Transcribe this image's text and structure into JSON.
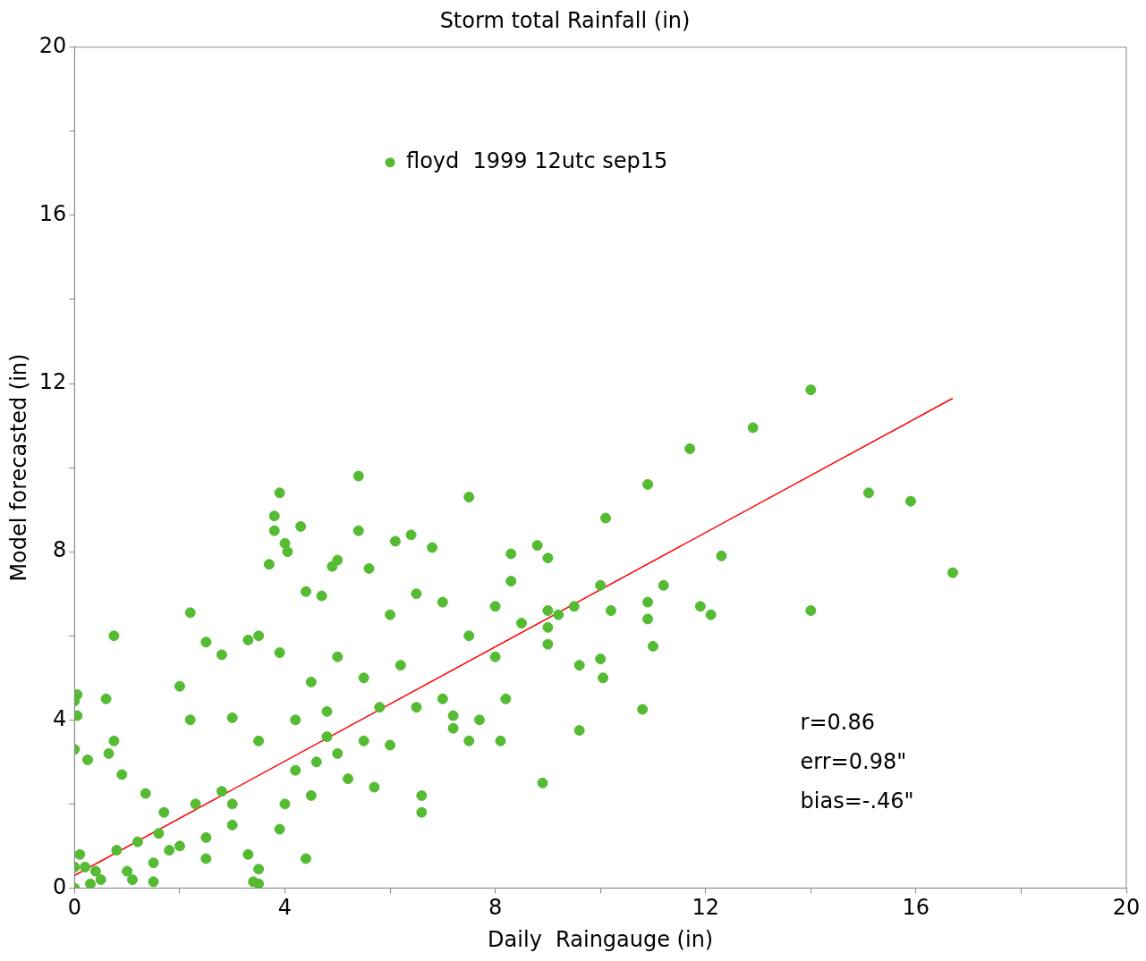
{
  "chart_data": {
    "type": "scatter",
    "title": "Storm total Rainfall (in)",
    "xlabel": "Daily  Raingauge (in)",
    "ylabel": "Model forecasted (in)",
    "xlim": [
      0,
      20
    ],
    "ylim": [
      0,
      20
    ],
    "xticks": [
      0,
      {
        "value": 2,
        "label": null
      },
      4,
      {
        "value": 6,
        "label": null
      },
      8,
      {
        "value": 10,
        "label": null
      },
      12,
      {
        "value": 14,
        "label": null
      },
      16,
      {
        "value": 18,
        "label": null
      },
      20
    ],
    "yticks": [
      0,
      {
        "value": 2,
        "label": null
      },
      4,
      {
        "value": 6,
        "label": null
      },
      8,
      {
        "value": 10,
        "label": null
      },
      12,
      {
        "value": 14,
        "label": null
      },
      16,
      {
        "value": 18,
        "label": null
      },
      20
    ],
    "grid": false,
    "legend": "top",
    "series": [
      {
        "name": "floyd  1999 12utc sep15",
        "color": "#55bb33",
        "marker": "circle",
        "x": [
          14.0,
          12.9,
          11.7,
          10.9,
          10.1,
          15.1,
          15.9,
          16.7,
          14.0,
          12.3,
          11.2,
          11.9,
          12.1,
          10.9,
          10.9,
          11.0,
          10.8,
          10.2,
          10.0,
          9.6,
          9.6,
          10.0,
          10.05,
          9.5,
          9.2,
          8.9,
          8.8,
          9.0,
          9.0,
          8.3,
          8.3,
          7.5,
          6.8,
          6.4,
          6.1,
          5.4,
          5.4,
          5.6,
          5.0,
          4.9,
          4.3,
          3.9,
          3.8,
          3.8,
          4.0,
          4.05,
          3.7,
          4.4,
          4.7,
          2.2,
          0.75,
          0.05,
          0.0,
          0.05,
          0.0,
          0.6,
          0.75,
          0.25,
          0.9,
          1.35,
          1.7,
          0.65,
          2.0,
          2.5,
          2.8,
          3.3,
          3.5,
          3.9,
          2.2,
          3.0,
          3.5,
          4.5,
          5.0,
          5.5,
          6.0,
          6.5,
          7.0,
          7.5,
          8.0,
          8.5,
          9.0,
          7.0,
          7.2,
          6.5,
          6.0,
          6.6,
          6.6,
          5.5,
          5.0,
          5.2,
          5.7,
          4.5,
          4.4,
          3.5,
          3.4,
          3.5,
          3.3,
          3.9,
          4.0,
          4.2,
          4.2,
          3.0,
          2.5,
          2.0,
          1.5,
          1.0,
          0.5,
          0.2,
          0.1,
          0.3,
          1.8,
          2.5,
          3.0,
          8.0,
          8.2,
          7.7,
          7.5,
          8.1,
          7.2,
          9.0,
          6.2,
          5.8,
          4.8,
          4.6,
          4.8,
          1.2,
          1.6,
          2.3,
          2.8,
          0.4,
          0.8,
          0.0,
          0.0,
          1.1,
          1.5
        ],
        "values": [
          11.85,
          10.95,
          10.45,
          9.6,
          8.8,
          9.4,
          9.2,
          7.5,
          6.6,
          7.9,
          7.2,
          6.7,
          6.5,
          6.8,
          6.4,
          5.75,
          4.25,
          6.6,
          7.2,
          5.3,
          3.75,
          5.45,
          5.0,
          6.7,
          6.5,
          2.5,
          8.15,
          7.85,
          6.6,
          7.95,
          7.3,
          9.3,
          8.1,
          8.4,
          8.25,
          9.8,
          8.5,
          7.6,
          7.8,
          7.65,
          8.6,
          9.4,
          8.85,
          8.5,
          8.2,
          8.0,
          7.7,
          7.05,
          6.95,
          6.55,
          6.0,
          4.6,
          4.45,
          4.1,
          3.3,
          4.5,
          3.5,
          3.05,
          2.7,
          2.25,
          1.8,
          3.2,
          4.8,
          5.85,
          5.55,
          5.9,
          6.0,
          5.6,
          4.0,
          4.05,
          3.5,
          4.9,
          5.5,
          5.0,
          6.5,
          7.0,
          6.8,
          6.0,
          6.7,
          6.3,
          5.8,
          4.5,
          3.8,
          4.3,
          3.4,
          2.2,
          1.8,
          3.5,
          3.2,
          2.6,
          2.4,
          2.2,
          0.7,
          0.45,
          0.15,
          0.1,
          0.8,
          1.4,
          2.0,
          2.8,
          4.0,
          2.0,
          1.2,
          1.0,
          0.6,
          0.4,
          0.2,
          0.5,
          0.8,
          0.1,
          0.9,
          0.7,
          1.5,
          5.5,
          4.5,
          4.0,
          3.5,
          3.5,
          4.1,
          6.2,
          5.3,
          4.3,
          4.2,
          3.0,
          3.6,
          1.1,
          1.3,
          2.0,
          2.3,
          0.4,
          0.9,
          0.0,
          0.5,
          0.2,
          0.15
        ]
      },
      {
        "type": "line",
        "color": "#ff0000",
        "marker": "none",
        "x": [
          0,
          16.7
        ],
        "values": [
          0.3,
          11.65
        ]
      }
    ],
    "annotations": [
      "r=0.86",
      "err=0.98\"",
      "bias=-.46\""
    ]
  }
}
